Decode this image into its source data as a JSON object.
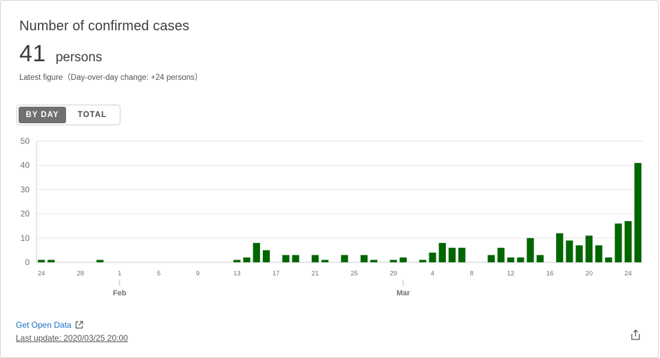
{
  "card": {
    "title": "Number of confirmed cases",
    "figure_value": "41",
    "figure_unit": "persons",
    "subnote": "Latest figure（Day-over-day change: +24 persons）"
  },
  "toggle": {
    "by_day_label": "BY DAY",
    "total_label": "TOTAL",
    "selected": "BY DAY"
  },
  "footer": {
    "open_data_label": "Get Open Data",
    "last_update": "Last update: 2020/03/25 20:00"
  },
  "icons": {
    "external_link": "external-link-icon",
    "share": "share-icon"
  },
  "colors": {
    "bar": "#006600",
    "toggle_active": "#707070",
    "link": "#1a6fc4"
  },
  "chart_data": {
    "type": "bar",
    "title": "",
    "xlabel": "",
    "ylabel": "",
    "ylim": [
      0,
      50
    ],
    "yticks": [
      0,
      10,
      20,
      30,
      40,
      50
    ],
    "grid": true,
    "categories": [
      "2020-01-24",
      "2020-01-25",
      "2020-01-26",
      "2020-01-27",
      "2020-01-28",
      "2020-01-29",
      "2020-01-30",
      "2020-01-31",
      "2020-02-01",
      "2020-02-02",
      "2020-02-03",
      "2020-02-04",
      "2020-02-05",
      "2020-02-06",
      "2020-02-07",
      "2020-02-08",
      "2020-02-09",
      "2020-02-10",
      "2020-02-11",
      "2020-02-12",
      "2020-02-13",
      "2020-02-14",
      "2020-02-15",
      "2020-02-16",
      "2020-02-17",
      "2020-02-18",
      "2020-02-19",
      "2020-02-20",
      "2020-02-21",
      "2020-02-22",
      "2020-02-23",
      "2020-02-24",
      "2020-02-25",
      "2020-02-26",
      "2020-02-27",
      "2020-02-28",
      "2020-02-29",
      "2020-03-01",
      "2020-03-02",
      "2020-03-03",
      "2020-03-04",
      "2020-03-05",
      "2020-03-06",
      "2020-03-07",
      "2020-03-08",
      "2020-03-09",
      "2020-03-10",
      "2020-03-11",
      "2020-03-12",
      "2020-03-13",
      "2020-03-14",
      "2020-03-15",
      "2020-03-16",
      "2020-03-17",
      "2020-03-18",
      "2020-03-19",
      "2020-03-20",
      "2020-03-21",
      "2020-03-22",
      "2020-03-23",
      "2020-03-24",
      "2020-03-25"
    ],
    "values": [
      1,
      1,
      0,
      0,
      0,
      0,
      1,
      0,
      0,
      0,
      0,
      0,
      0,
      0,
      0,
      0,
      0,
      0,
      0,
      0,
      1,
      2,
      8,
      5,
      0,
      3,
      3,
      0,
      3,
      1,
      0,
      3,
      0,
      3,
      1,
      0,
      1,
      2,
      0,
      1,
      4,
      8,
      6,
      6,
      0,
      0,
      3,
      6,
      2,
      2,
      10,
      3,
      0,
      12,
      9,
      7,
      11,
      7,
      2,
      16,
      17,
      41
    ],
    "xtick_labels": [
      "24",
      "28",
      "1",
      "5",
      "9",
      "13",
      "17",
      "21",
      "25",
      "29",
      "4",
      "8",
      "12",
      "16",
      "20",
      "24"
    ],
    "month_labels": [
      "Feb",
      "Mar"
    ]
  }
}
